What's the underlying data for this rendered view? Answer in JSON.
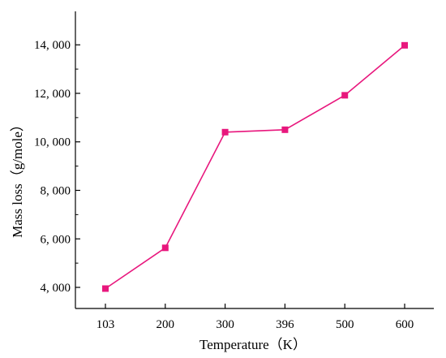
{
  "chart_data": {
    "type": "line",
    "title": "",
    "xlabel": "Temperature（K）",
    "ylabel": "Mass loss（g/mole）",
    "categories": [
      "103",
      "200",
      "300",
      "396",
      "500",
      "600"
    ],
    "series": [
      {
        "values": [
          3950,
          5630,
          10400,
          10500,
          11920,
          13980
        ],
        "color": "#e8177d",
        "marker": "square"
      }
    ],
    "yticks": [
      4000,
      6000,
      8000,
      10000,
      12000,
      14000
    ],
    "ytick_labels": [
      "4, 000",
      "6, 000",
      "8, 000",
      "10, 000",
      "12, 000",
      "14, 000"
    ],
    "ylim": [
      3130,
      15380
    ],
    "grid": false,
    "legend": "none"
  }
}
